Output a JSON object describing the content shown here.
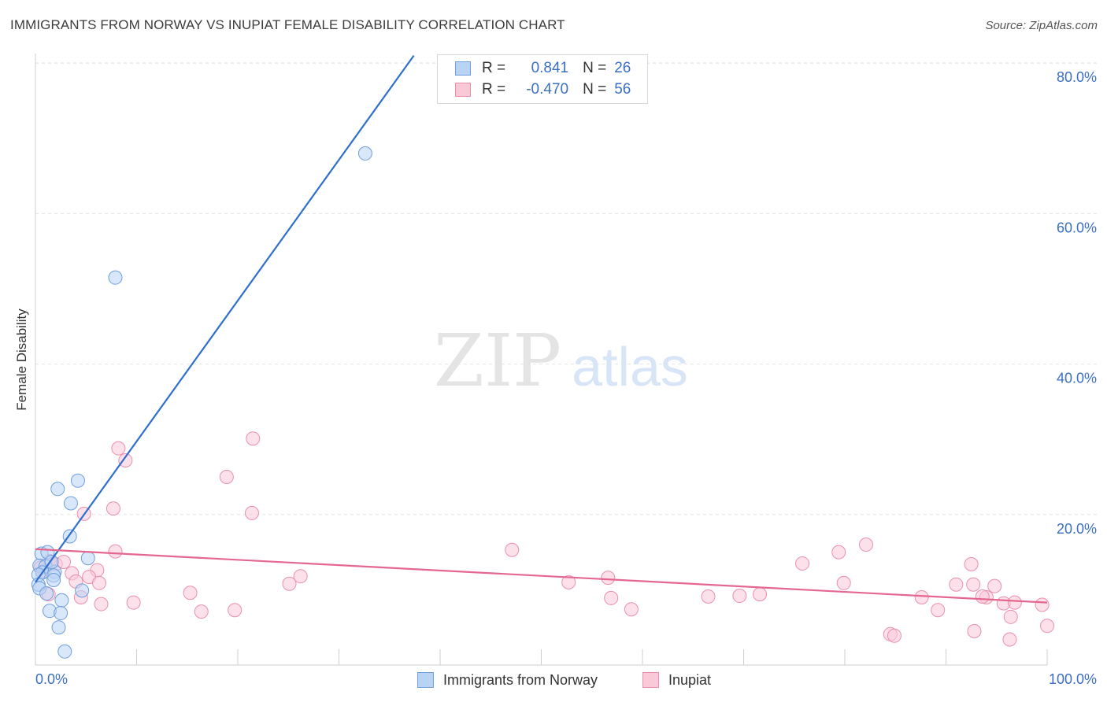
{
  "title": "IMMIGRANTS FROM NORWAY VS INUPIAT FEMALE DISABILITY CORRELATION CHART",
  "source": "Source: ZipAtlas.com",
  "watermark": {
    "zip": "ZIP",
    "atlas": "atlas"
  },
  "legend": {
    "r_label": "R =",
    "n_label": "N =",
    "norway": {
      "r": "0.841",
      "n": "26"
    },
    "inupiat": {
      "r": "-0.470",
      "n": "56"
    }
  },
  "bottom_legend": {
    "norway": "Immigrants from Norway",
    "inupiat": "Inupiat"
  },
  "colors": {
    "norway_fill": "#b9d3f5",
    "norway_stroke": "#6f9fdc",
    "norway_line": "#2f6fcc",
    "inupiat_fill": "#f9c9d8",
    "inupiat_stroke": "#eb8fab",
    "inupiat_line": "#e4678f",
    "tick_label": "#3a6fc4",
    "grid": "#e3e3e3"
  },
  "chart_data": {
    "type": "scatter",
    "title": "IMMIGRANTS FROM NORWAY VS INUPIAT FEMALE DISABILITY CORRELATION CHART",
    "xlabel": "",
    "ylabel": "Female Disability",
    "xlim": [
      0,
      100
    ],
    "ylim": [
      0,
      82
    ],
    "x_tick_labels": [
      "0.0%",
      "100.0%"
    ],
    "y_ticks": [
      20,
      40,
      60,
      80
    ],
    "y_tick_labels": [
      "20.0%",
      "40.0%",
      "60.0%",
      "80.0%"
    ],
    "series": [
      {
        "name": "Immigrants from Norway",
        "r": 0.841,
        "n": 26,
        "trend": {
          "x": [
            0,
            37.4
          ],
          "y": [
            11.0,
            81.0
          ]
        },
        "points": [
          {
            "x": 7.9,
            "y": 51.5
          },
          {
            "x": 32.6,
            "y": 68.0
          },
          {
            "x": 4.2,
            "y": 24.5
          },
          {
            "x": 2.2,
            "y": 23.4
          },
          {
            "x": 3.5,
            "y": 21.5
          },
          {
            "x": 3.4,
            "y": 17.1
          },
          {
            "x": 5.2,
            "y": 14.2
          },
          {
            "x": 0.6,
            "y": 14.8
          },
          {
            "x": 1.2,
            "y": 15.0
          },
          {
            "x": 0.4,
            "y": 13.2
          },
          {
            "x": 1.0,
            "y": 13.1
          },
          {
            "x": 0.7,
            "y": 12.3
          },
          {
            "x": 0.3,
            "y": 12.0
          },
          {
            "x": 1.9,
            "y": 12.4
          },
          {
            "x": 1.8,
            "y": 11.9
          },
          {
            "x": 1.8,
            "y": 11.3
          },
          {
            "x": 0.3,
            "y": 10.7
          },
          {
            "x": 0.4,
            "y": 10.2
          },
          {
            "x": 4.6,
            "y": 9.9
          },
          {
            "x": 1.1,
            "y": 9.5
          },
          {
            "x": 2.6,
            "y": 8.6
          },
          {
            "x": 1.4,
            "y": 7.2
          },
          {
            "x": 2.5,
            "y": 6.9
          },
          {
            "x": 2.3,
            "y": 5.0
          },
          {
            "x": 2.9,
            "y": 1.8
          },
          {
            "x": 1.6,
            "y": 13.7
          }
        ]
      },
      {
        "name": "Inupiat",
        "r": -0.47,
        "n": 56,
        "trend": {
          "x": [
            0,
            100
          ],
          "y": [
            15.4,
            8.3
          ]
        },
        "points": [
          {
            "x": 21.5,
            "y": 30.1
          },
          {
            "x": 8.2,
            "y": 28.8
          },
          {
            "x": 8.9,
            "y": 27.2
          },
          {
            "x": 18.9,
            "y": 25.0
          },
          {
            "x": 7.7,
            "y": 20.8
          },
          {
            "x": 21.4,
            "y": 20.2
          },
          {
            "x": 4.8,
            "y": 20.1
          },
          {
            "x": 7.9,
            "y": 15.1
          },
          {
            "x": 47.1,
            "y": 15.3
          },
          {
            "x": 82.1,
            "y": 16.0
          },
          {
            "x": 79.4,
            "y": 15.0
          },
          {
            "x": 75.8,
            "y": 13.5
          },
          {
            "x": 92.5,
            "y": 13.4
          },
          {
            "x": 1.4,
            "y": 13.8
          },
          {
            "x": 2.0,
            "y": 13.4
          },
          {
            "x": 0.5,
            "y": 12.9
          },
          {
            "x": 2.8,
            "y": 13.7
          },
          {
            "x": 6.1,
            "y": 12.6
          },
          {
            "x": 3.6,
            "y": 12.2
          },
          {
            "x": 5.3,
            "y": 11.7
          },
          {
            "x": 26.2,
            "y": 11.8
          },
          {
            "x": 56.6,
            "y": 11.6
          },
          {
            "x": 4.0,
            "y": 11.1
          },
          {
            "x": 6.3,
            "y": 10.9
          },
          {
            "x": 25.1,
            "y": 10.8
          },
          {
            "x": 52.7,
            "y": 11.0
          },
          {
            "x": 79.9,
            "y": 10.9
          },
          {
            "x": 91.0,
            "y": 10.7
          },
          {
            "x": 94.8,
            "y": 10.5
          },
          {
            "x": 92.7,
            "y": 10.7
          },
          {
            "x": 15.3,
            "y": 9.6
          },
          {
            "x": 1.3,
            "y": 9.4
          },
          {
            "x": 4.5,
            "y": 9.0
          },
          {
            "x": 66.5,
            "y": 9.1
          },
          {
            "x": 69.6,
            "y": 9.2
          },
          {
            "x": 71.6,
            "y": 9.4
          },
          {
            "x": 87.6,
            "y": 9.0
          },
          {
            "x": 94.0,
            "y": 9.0
          },
          {
            "x": 93.6,
            "y": 9.1
          },
          {
            "x": 56.9,
            "y": 8.9
          },
          {
            "x": 6.5,
            "y": 8.1
          },
          {
            "x": 9.7,
            "y": 8.3
          },
          {
            "x": 95.7,
            "y": 8.2
          },
          {
            "x": 96.8,
            "y": 8.3
          },
          {
            "x": 16.4,
            "y": 7.1
          },
          {
            "x": 19.7,
            "y": 7.3
          },
          {
            "x": 58.9,
            "y": 7.4
          },
          {
            "x": 89.2,
            "y": 7.3
          },
          {
            "x": 96.4,
            "y": 6.4
          },
          {
            "x": 100.0,
            "y": 5.2
          },
          {
            "x": 92.8,
            "y": 4.5
          },
          {
            "x": 84.5,
            "y": 4.1
          },
          {
            "x": 84.9,
            "y": 3.9
          },
          {
            "x": 96.3,
            "y": 3.4
          },
          {
            "x": 99.5,
            "y": 8.0
          },
          {
            "x": 0.9,
            "y": 12.5
          }
        ]
      }
    ]
  }
}
